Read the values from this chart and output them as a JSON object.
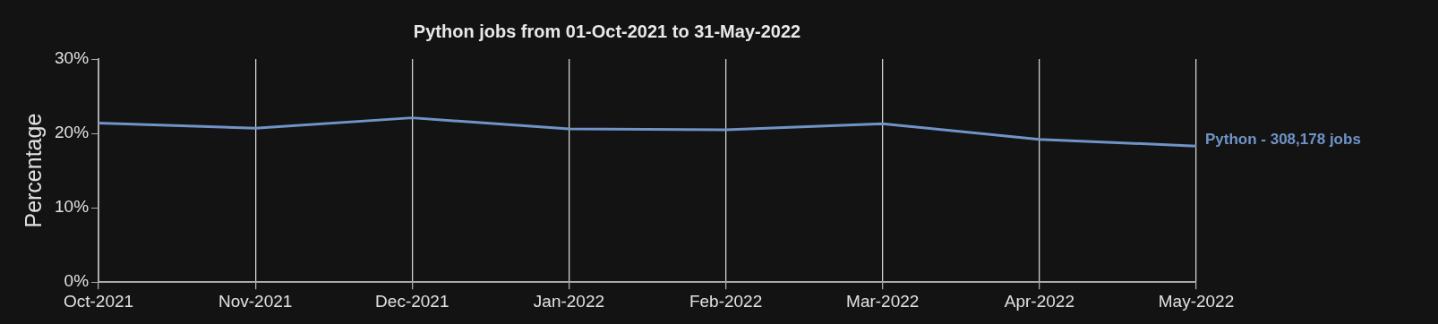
{
  "chart_data": {
    "type": "line",
    "title": "Python jobs from 01-Oct-2021 to 31-May-2022",
    "ylabel": "Percentage",
    "categories": [
      "Oct-2021",
      "Nov-2021",
      "Dec-2021",
      "Jan-2022",
      "Feb-2022",
      "Mar-2022",
      "Apr-2022",
      "May-2022"
    ],
    "series": [
      {
        "name": "Python - 308,178 jobs",
        "color": "#7094c8",
        "values": [
          21.4,
          20.7,
          22.1,
          20.6,
          20.5,
          21.3,
          19.2,
          18.3
        ]
      }
    ],
    "ylim": [
      0,
      30
    ],
    "yticks": [
      {
        "value": 0,
        "label": "0%"
      },
      {
        "value": 10,
        "label": "10%"
      },
      {
        "value": 20,
        "label": "20%"
      },
      {
        "value": 30,
        "label": "30%"
      }
    ],
    "grid": "x",
    "legend": false,
    "marker": "none",
    "line_style": "solid"
  }
}
